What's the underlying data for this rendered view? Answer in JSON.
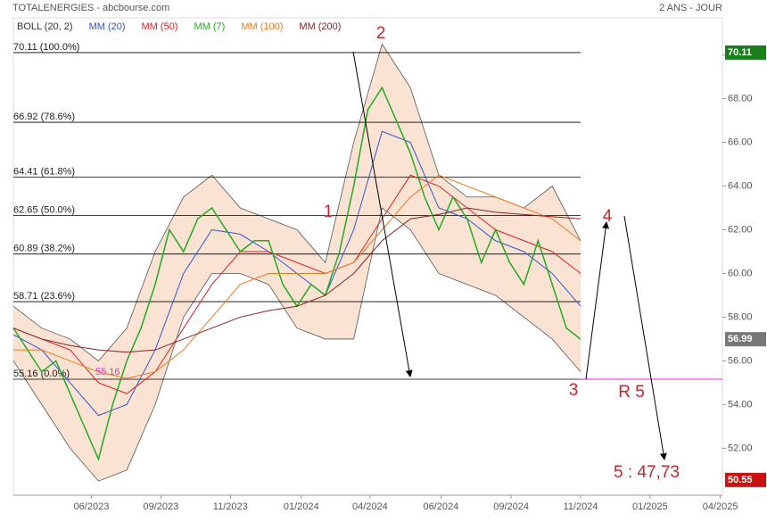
{
  "chart_data": {
    "type": "line",
    "title": "TOTALENERGIES - abcbourse.com",
    "subtitle": "2 ANS - JOUR",
    "xlim": [
      0,
      100
    ],
    "xticks": [
      {
        "value": 11,
        "label": "06/2023"
      },
      {
        "value": 20.8,
        "label": "09/2023"
      },
      {
        "value": 30.6,
        "label": "11/2023"
      },
      {
        "value": 40.6,
        "label": "01/2024"
      },
      {
        "value": 50.3,
        "label": "04/2024"
      },
      {
        "value": 60.3,
        "label": "06/2024"
      },
      {
        "value": 70.2,
        "label": "09/2024"
      },
      {
        "value": 80,
        "label": "11/2024"
      },
      {
        "value": 89.8,
        "label": "01/2025"
      },
      {
        "value": 99.7,
        "label": "04/2025"
      }
    ],
    "ylim": [
      49.85,
      71.7
    ],
    "yticks": [
      {
        "value": 52,
        "label": "52.00"
      },
      {
        "value": 54,
        "label": "54.00"
      },
      {
        "value": 56,
        "label": "56.00"
      },
      {
        "value": 58,
        "label": "58.00"
      },
      {
        "value": 60,
        "label": "60.00"
      },
      {
        "value": 62,
        "label": "62.00"
      },
      {
        "value": 64,
        "label": "64.00"
      },
      {
        "value": 66,
        "label": "66.00"
      },
      {
        "value": 68,
        "label": "68.00"
      },
      {
        "value": 70,
        "label": "70.00"
      }
    ],
    "bollinger": {
      "name": "BOLL (20, 2)",
      "color": "#555555",
      "fill": "#fbe3d3",
      "x": [
        0,
        4,
        8,
        12,
        16,
        20,
        24,
        28,
        32,
        36,
        40,
        44,
        48,
        52,
        56,
        60,
        64,
        68,
        72,
        76,
        80
      ],
      "upper": [
        58.5,
        57.5,
        57,
        56,
        57.5,
        61,
        63.5,
        64.5,
        63,
        62.5,
        62,
        60.5,
        66,
        70.5,
        68.5,
        64.5,
        63.5,
        63.5,
        63,
        64,
        61.5
      ],
      "lower": [
        56,
        54,
        52,
        50.5,
        51,
        54,
        58,
        60,
        60,
        59.5,
        57.5,
        57,
        57,
        63,
        62,
        60,
        59.5,
        59,
        58,
        57,
        55.5
      ]
    },
    "series": [
      {
        "name": "MM (20)",
        "color": "#3355cc",
        "x": [
          0,
          4,
          8,
          12,
          16,
          20,
          24,
          28,
          32,
          36,
          40,
          44,
          48,
          52,
          56,
          60,
          64,
          68,
          72,
          76,
          80
        ],
        "values": [
          57.2,
          56.5,
          55,
          53.5,
          54,
          56.5,
          60,
          62,
          61.8,
          61,
          60,
          59,
          62,
          66.5,
          66,
          63,
          62.5,
          61.5,
          61,
          60,
          58.5
        ]
      },
      {
        "name": "MM (50)",
        "color": "#dd2222",
        "x": [
          0,
          4,
          8,
          12,
          16,
          20,
          24,
          28,
          32,
          36,
          40,
          44,
          48,
          52,
          56,
          60,
          64,
          68,
          72,
          76,
          80
        ],
        "values": [
          57.5,
          57,
          56.5,
          55,
          54.5,
          55.5,
          57.5,
          59.5,
          61,
          61,
          60.5,
          60,
          60.5,
          62.5,
          64.5,
          64,
          63,
          62,
          61.5,
          61,
          60
        ]
      },
      {
        "name": "MM (7)",
        "color": "#22aa22",
        "x": [
          0,
          2,
          4,
          6,
          8,
          10,
          12,
          14,
          16,
          18,
          20,
          22,
          24,
          26,
          28,
          30,
          32,
          34,
          36,
          38,
          40,
          42,
          44,
          46,
          48,
          50,
          52,
          54,
          56,
          58,
          60,
          62,
          64,
          66,
          68,
          70,
          72,
          74,
          76,
          78,
          80
        ],
        "values": [
          57.5,
          56.5,
          55.5,
          56,
          54.5,
          53,
          51.5,
          54,
          56,
          57.5,
          59.5,
          62,
          61,
          62.5,
          63,
          62,
          61,
          61.5,
          61.5,
          59.5,
          58.5,
          59.5,
          59,
          61,
          64,
          67.5,
          68.5,
          67,
          65.5,
          63.5,
          62,
          63.5,
          62.5,
          60.5,
          62,
          60.5,
          59.5,
          61.5,
          59.5,
          57.5,
          56.99
        ]
      },
      {
        "name": "MM (100)",
        "color": "#ee7722",
        "x": [
          0,
          4,
          8,
          12,
          16,
          20,
          24,
          28,
          32,
          36,
          40,
          44,
          48,
          52,
          56,
          60,
          64,
          68,
          72,
          76,
          80
        ],
        "values": [
          56.5,
          56.5,
          56,
          55.5,
          55.2,
          55.5,
          56.5,
          58,
          59.5,
          60,
          60,
          60,
          60.5,
          62,
          63.5,
          64.5,
          64,
          63.5,
          63,
          62.5,
          61.5
        ]
      },
      {
        "name": "MM (200)",
        "color": "#882222",
        "x": [
          0,
          4,
          8,
          12,
          16,
          20,
          24,
          28,
          32,
          36,
          40,
          44,
          48,
          52,
          56,
          60,
          64,
          68,
          72,
          76,
          80
        ],
        "values": [
          57.5,
          57,
          56.7,
          56.5,
          56.4,
          56.5,
          57,
          57.5,
          58,
          58.3,
          58.5,
          59,
          60,
          61.5,
          62.5,
          62.7,
          63,
          62.8,
          62.7,
          62.6,
          62.5
        ]
      }
    ],
    "fibonacci": [
      {
        "value": 70.11,
        "label": "70.11 (100.0%)"
      },
      {
        "value": 66.92,
        "label": "66.92 (78.6%)"
      },
      {
        "value": 64.41,
        "label": "64.41 (61.8%)"
      },
      {
        "value": 62.65,
        "label": "62.65 (50.0%)"
      },
      {
        "value": 60.89,
        "label": "60.89 (38.2%)"
      },
      {
        "value": 58.71,
        "label": "58.71 (23.6%)"
      },
      {
        "value": 55.16,
        "label": "55.16 (0.0%)"
      }
    ],
    "support": {
      "value": 55.16,
      "label": "55.16",
      "color": "#ee22ee"
    },
    "price_tags": [
      {
        "value": 70.11,
        "color": "#1a7f1a"
      },
      {
        "value": 56.99,
        "color": "#777777"
      },
      {
        "value": 50.55,
        "color": "#cc1111"
      }
    ],
    "annotations": [
      "1",
      "2",
      "3",
      "4",
      "R 5",
      "5 : 47,73"
    ]
  }
}
